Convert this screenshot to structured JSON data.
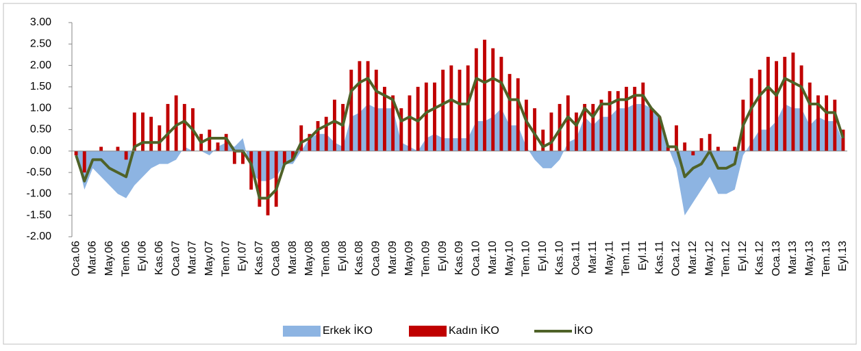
{
  "chart_data": {
    "type": "combo",
    "categories": [
      "Oca.06",
      null,
      "Mar.06",
      null,
      "May.06",
      null,
      "Tem.06",
      null,
      "Eyl.06",
      null,
      "Kas.06",
      null,
      "Oca.07",
      null,
      "Mar.07",
      null,
      "May.07",
      null,
      "Tem.07",
      null,
      "Eyl.07",
      null,
      "Kas.07",
      null,
      "Oca.08",
      null,
      "Mar.08",
      null,
      "May.08",
      null,
      "Tem.08",
      null,
      "Eyl.08",
      null,
      "Kas.08",
      null,
      "Oca.09",
      null,
      "Mar.09",
      null,
      "May.09",
      null,
      "Tem.09",
      null,
      "Eyl.09",
      null,
      "Kas.09",
      null,
      "Oca.10",
      null,
      "Mar.10",
      null,
      "May.10",
      null,
      "Tem.10",
      null,
      "Eyl.10",
      null,
      "Kas.10",
      null,
      "Oca.11",
      null,
      "Mar.11",
      null,
      "May.11",
      null,
      "Tem.11",
      null,
      "Eyl.11",
      null,
      "Kas.11",
      null,
      "Oca.12",
      null,
      "Mar.12",
      null,
      "May.12",
      null,
      "Tem.12",
      null,
      "Eyl.12",
      null,
      "Kas.12",
      null,
      "Oca.13",
      null,
      "Mar.13",
      null,
      "May.13",
      null,
      "Tem.13",
      null,
      "Eyl.13"
    ],
    "series": [
      {
        "name": "Erkek İKO",
        "type": "area",
        "color": "#8db4e2",
        "values": [
          -0.1,
          -0.9,
          -0.4,
          -0.6,
          -0.8,
          -1.0,
          -1.1,
          -0.8,
          -0.6,
          -0.4,
          -0.3,
          -0.3,
          -0.2,
          0.1,
          0.0,
          0.0,
          -0.1,
          0.1,
          0.2,
          0.1,
          0.3,
          -0.5,
          -0.7,
          -0.7,
          -0.6,
          -0.3,
          -0.3,
          0.0,
          0.3,
          0.4,
          0.4,
          0.2,
          0.1,
          0.8,
          0.9,
          1.1,
          1.0,
          1.0,
          1.0,
          0.2,
          0.1,
          0.0,
          0.3,
          0.4,
          0.3,
          0.3,
          0.3,
          0.3,
          0.7,
          0.7,
          0.8,
          1.0,
          0.6,
          0.6,
          0.1,
          -0.2,
          -0.4,
          -0.4,
          -0.2,
          0.2,
          0.3,
          0.8,
          0.6,
          0.8,
          0.8,
          1.0,
          1.0,
          1.1,
          1.1,
          1.0,
          0.8,
          0.1,
          -0.4,
          -1.5,
          -1.2,
          -0.9,
          -0.6,
          -1.0,
          -1.0,
          -0.9,
          -0.1,
          0.2,
          0.5,
          0.5,
          0.7,
          1.1,
          1.0,
          1.0,
          0.6,
          0.8,
          0.7,
          0.7,
          0.2
        ]
      },
      {
        "name": "Kadın İKO",
        "type": "bar",
        "color": "#c00000",
        "values": [
          -0.1,
          -0.5,
          0.0,
          0.1,
          0.0,
          0.1,
          -0.2,
          0.9,
          0.9,
          0.8,
          0.6,
          1.1,
          1.3,
          1.1,
          1.0,
          0.4,
          0.5,
          0.2,
          0.4,
          -0.3,
          -0.3,
          -0.9,
          -1.3,
          -1.5,
          -1.3,
          -0.3,
          -0.2,
          0.6,
          0.4,
          0.7,
          0.8,
          1.2,
          1.1,
          1.9,
          2.1,
          2.1,
          1.9,
          1.5,
          1.3,
          1.0,
          1.3,
          1.5,
          1.6,
          1.6,
          1.9,
          2.0,
          1.9,
          2.0,
          2.4,
          2.6,
          2.4,
          2.2,
          1.8,
          1.7,
          1.2,
          1.0,
          0.5,
          0.9,
          1.1,
          1.3,
          0.9,
          1.1,
          1.1,
          1.2,
          1.4,
          1.4,
          1.5,
          1.5,
          1.6,
          1.0,
          0.8,
          0.1,
          0.6,
          0.2,
          -0.1,
          0.3,
          0.4,
          0.1,
          0.0,
          0.1,
          1.2,
          1.7,
          1.9,
          2.2,
          2.1,
          2.2,
          2.3,
          2.0,
          1.6,
          1.3,
          1.3,
          1.2,
          0.5
        ]
      },
      {
        "name": "İKO",
        "type": "line",
        "color": "#4f6228",
        "values": [
          -0.1,
          -0.7,
          -0.2,
          -0.2,
          -0.4,
          -0.5,
          -0.6,
          0.1,
          0.2,
          0.2,
          0.2,
          0.4,
          0.6,
          0.7,
          0.5,
          0.2,
          0.3,
          0.3,
          0.3,
          0.0,
          0.0,
          -0.3,
          -1.1,
          -1.1,
          -0.9,
          -0.3,
          -0.2,
          0.2,
          0.3,
          0.5,
          0.6,
          0.7,
          0.6,
          1.4,
          1.6,
          1.7,
          1.4,
          1.3,
          1.2,
          0.7,
          0.8,
          0.7,
          0.9,
          1.0,
          1.1,
          1.2,
          1.1,
          1.1,
          1.7,
          1.6,
          1.7,
          1.6,
          1.2,
          1.2,
          0.7,
          0.4,
          0.1,
          0.2,
          0.5,
          0.8,
          0.6,
          1.0,
          0.8,
          1.1,
          1.1,
          1.2,
          1.2,
          1.3,
          1.3,
          1.0,
          0.8,
          0.1,
          0.1,
          -0.6,
          -0.4,
          -0.3,
          0.0,
          -0.4,
          -0.4,
          -0.3,
          0.6,
          1.0,
          1.3,
          1.5,
          1.3,
          1.7,
          1.6,
          1.5,
          1.1,
          1.1,
          0.9,
          0.9,
          0.3
        ]
      }
    ],
    "ylim": [
      -2,
      3
    ],
    "yticks": [
      {
        "value": -2,
        "label": "-2.00"
      },
      {
        "value": -1.5,
        "label": "-1.50"
      },
      {
        "value": -1,
        "label": "-1.00"
      },
      {
        "value": -0.5,
        "label": "-0.50"
      },
      {
        "value": 0,
        "label": "0.00"
      },
      {
        "value": 0.5,
        "label": "0.50"
      },
      {
        "value": 1,
        "label": "1.00"
      },
      {
        "value": 1.5,
        "label": "1.50"
      },
      {
        "value": 2,
        "label": "2.00"
      },
      {
        "value": 2.5,
        "label": "2.50"
      },
      {
        "value": 3,
        "label": "3.00"
      }
    ],
    "grid": false,
    "legend": "bottom"
  }
}
